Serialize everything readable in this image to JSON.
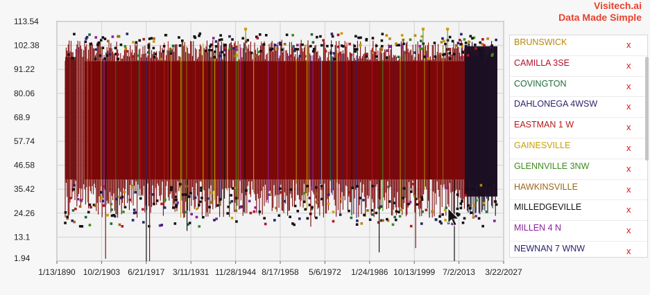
{
  "brand": {
    "line1": "Visitech.ai",
    "line2": "Data Made Simple"
  },
  "legend": {
    "remove_glyph": "x",
    "items": [
      {
        "label": "BRUNSWICK",
        "color": "#b8860b"
      },
      {
        "label": "CAMILLA 3SE",
        "color": "#b0102a"
      },
      {
        "label": "COVINGTON",
        "color": "#1e6b3a"
      },
      {
        "label": "DAHLONEGA 4WSW",
        "color": "#2b2370"
      },
      {
        "label": "EASTMAN 1 W",
        "color": "#b31b1b"
      },
      {
        "label": "GAINESVILLE",
        "color": "#c8a000"
      },
      {
        "label": "GLENNVILLE 3NW",
        "color": "#3f8a1c"
      },
      {
        "label": "HAWKINSVILLE",
        "color": "#9c6414"
      },
      {
        "label": "MILLEDGEVILLE",
        "color": "#111111"
      },
      {
        "label": "MILLEN 4 N",
        "color": "#8a1fa0"
      },
      {
        "label": "NEWNAN 7 WNW",
        "color": "#26226e"
      }
    ]
  },
  "chart_data": {
    "type": "line",
    "y_ticks": [
      "1.94",
      "13.1",
      "24.26",
      "35.42",
      "46.58",
      "57.74",
      "68.9",
      "80.06",
      "91.22",
      "102.38",
      "113.54"
    ],
    "x_ticks": [
      "1/13/1890",
      "10/2/1903",
      "6/21/1917",
      "3/11/1931",
      "11/28/1944",
      "8/17/1958",
      "5/6/1972",
      "1/24/1986",
      "10/13/1999",
      "7/2/2013",
      "3/22/2027"
    ],
    "ylim": [
      1.94,
      113.54
    ],
    "xlim": [
      1890.04,
      2027.22
    ],
    "grid": true,
    "legend_position": "right",
    "series_summary": {
      "typical_high": 98,
      "typical_low": 28,
      "band_core_high": 95,
      "band_core_low": 40
    }
  }
}
